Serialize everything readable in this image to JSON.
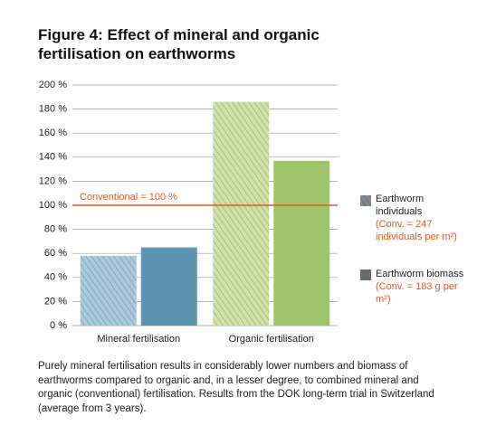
{
  "chart_data": {
    "type": "bar",
    "title": "Figure 4:  Effect of mineral and organic fertilisation on earthworms",
    "categories": [
      "Mineral fertilisation",
      "Organic fertilisation"
    ],
    "series": [
      {
        "name": "Earthworm individuals",
        "note": "(Conv. = 247 individuals per m²)",
        "color": "#7f8b94",
        "hatched": true,
        "bar_colors": [
          "#a9cbdd",
          "#cfe2a6"
        ],
        "values": [
          58,
          186
        ]
      },
      {
        "name": "Earthworm biomass",
        "note": "(Conv. = 183 g per m²)",
        "color": "#5f6d77",
        "hatched": false,
        "bar_colors": [
          "#5b93b1",
          "#9fc56c"
        ],
        "values": [
          65,
          137
        ]
      }
    ],
    "reference_line": {
      "value": 100,
      "label": "Conventional = 100 %",
      "color": "#e05a1e"
    },
    "ylim": [
      0,
      200
    ],
    "yticks": [
      {
        "value": 0,
        "label": "0 %"
      },
      {
        "value": 20,
        "label": "20 %"
      },
      {
        "value": 40,
        "label": "40 %"
      },
      {
        "value": 60,
        "label": "60 %"
      },
      {
        "value": 80,
        "label": "80 %"
      },
      {
        "value": 100,
        "label": "100 %"
      },
      {
        "value": 120,
        "label": "120 %"
      },
      {
        "value": 140,
        "label": "140 %"
      },
      {
        "value": 160,
        "label": "160 %"
      },
      {
        "value": 180,
        "label": "180 %"
      },
      {
        "value": 200,
        "label": "200 %"
      }
    ],
    "grid": true,
    "caption": "Purely mineral fertilisation results in considerably lower numbers and biomass of earthworms compared to organic and, in a lesser degree, to combined mineral and organic (conventional) fertilisation. Results from the DOK long-term trial in Switzerland (average from 3 years)."
  }
}
